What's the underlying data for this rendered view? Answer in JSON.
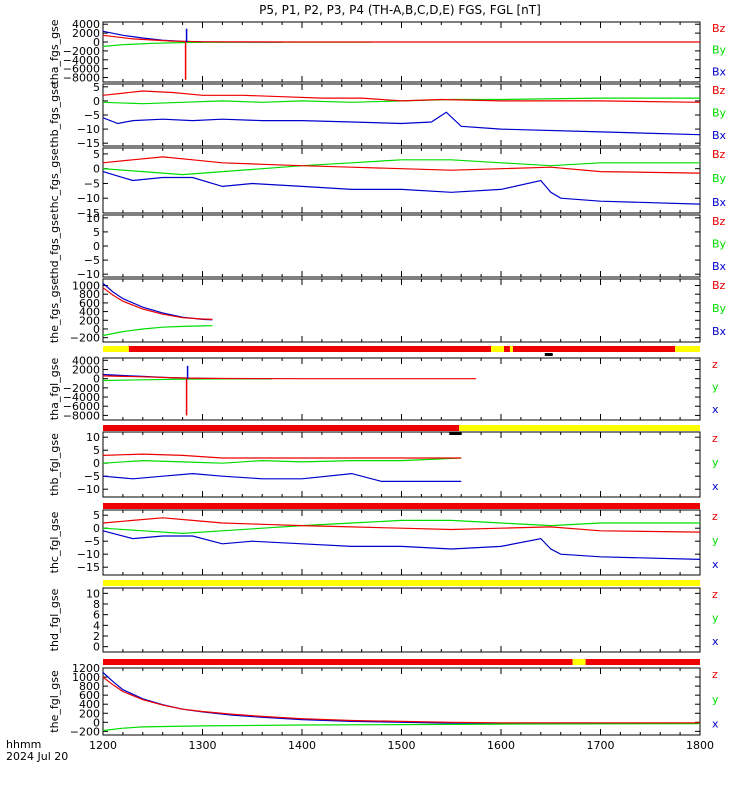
{
  "title": "P5, P1, P2, P3, P4 (TH-A,B,C,D,E) FGS, FGL [nT]",
  "footer": {
    "unit": "hhmm",
    "date": "2024 Jul 20"
  },
  "colors": {
    "x": "#0000cc",
    "y": "#00dd00",
    "z": "#ee0000",
    "flag_red": "#ee0000",
    "flag_yellow": "#ffff00",
    "flag_black": "#000000"
  },
  "chart_data": [
    {
      "type": "line",
      "ylabel": "tha_fgs_gse",
      "ylim": [
        -9000,
        4500
      ],
      "yticks": [
        4000,
        2000,
        0,
        -2000,
        -4000,
        -6000,
        -8000
      ],
      "legend": [
        "Bz",
        "By",
        "Bx"
      ],
      "xlim": [
        1200,
        1800
      ],
      "series": [
        {
          "name": "Bx",
          "color": "#0000cc",
          "x": [
            1200,
            1220,
            1240,
            1260,
            1280,
            1300,
            1330,
            1380
          ],
          "y": [
            2400,
            1500,
            900,
            400,
            150,
            20,
            -20,
            -20
          ]
        },
        {
          "name": "By",
          "color": "#00dd00",
          "x": [
            1200,
            1220,
            1250,
            1290,
            1330,
            1380,
            1470
          ],
          "y": [
            -1000,
            -600,
            -300,
            -100,
            -50,
            -30,
            -20
          ]
        },
        {
          "name": "Bz",
          "color": "#ee0000",
          "x": [
            1200,
            1230,
            1270,
            1300,
            1400,
            1500,
            1800
          ],
          "y": [
            1500,
            700,
            200,
            50,
            0,
            0,
            0
          ]
        }
      ],
      "spikes": [
        {
          "x": 1283,
          "y": -8500,
          "color": "#ee0000"
        },
        {
          "x": 1284,
          "y": 3000,
          "color": "#0000cc"
        }
      ]
    },
    {
      "type": "line",
      "ylabel": "thb_fgs_gse",
      "ylim": [
        -16,
        6
      ],
      "yticks": [
        5,
        0,
        -5,
        -10,
        -15
      ],
      "legend": [
        "Bz",
        "By",
        "Bx"
      ],
      "xlim": [
        1200,
        1800
      ],
      "series": [
        {
          "name": "Bx",
          "color": "#0000cc",
          "x": [
            1200,
            1215,
            1230,
            1260,
            1290,
            1320,
            1360,
            1400,
            1450,
            1500,
            1530,
            1545,
            1560,
            1600,
            1700,
            1800
          ],
          "y": [
            -6,
            -8,
            -7,
            -6.5,
            -7,
            -6.5,
            -7,
            -7,
            -7.5,
            -8,
            -7.5,
            -4,
            -9,
            -10,
            -11,
            -12
          ]
        },
        {
          "name": "By",
          "color": "#00dd00",
          "x": [
            1200,
            1240,
            1280,
            1320,
            1360,
            1400,
            1450,
            1500,
            1550,
            1600,
            1700,
            1800
          ],
          "y": [
            -0.5,
            -1,
            -0.5,
            0,
            -0.5,
            0,
            -0.5,
            0,
            0.5,
            0.5,
            1,
            1
          ]
        },
        {
          "name": "Bz",
          "color": "#ee0000",
          "x": [
            1200,
            1240,
            1270,
            1300,
            1340,
            1380,
            1420,
            1460,
            1500,
            1540,
            1600,
            1700,
            1800
          ],
          "y": [
            2,
            3.5,
            3,
            2,
            2,
            1.5,
            1,
            1,
            0,
            0.5,
            0,
            0,
            -0.5
          ]
        }
      ]
    },
    {
      "type": "line",
      "ylabel": "thc_fgs_gse",
      "ylim": [
        -15,
        7
      ],
      "yticks": [
        5,
        0,
        -5,
        -10,
        -15
      ],
      "legend": [
        "Bz",
        "By",
        "Bx"
      ],
      "xlim": [
        1200,
        1800
      ],
      "series": [
        {
          "name": "Bx",
          "color": "#0000cc",
          "x": [
            1200,
            1230,
            1260,
            1290,
            1320,
            1350,
            1400,
            1450,
            1500,
            1550,
            1600,
            1640,
            1650,
            1660,
            1700,
            1800
          ],
          "y": [
            -1,
            -4,
            -3,
            -3,
            -6,
            -5,
            -6,
            -7,
            -7,
            -8,
            -7,
            -4,
            -8,
            -10,
            -11,
            -12
          ]
        },
        {
          "name": "By",
          "color": "#00dd00",
          "x": [
            1200,
            1240,
            1280,
            1320,
            1360,
            1400,
            1450,
            1500,
            1550,
            1600,
            1650,
            1700,
            1800
          ],
          "y": [
            0,
            -1,
            -2,
            -1,
            0,
            1,
            2,
            3,
            3,
            2,
            1,
            2,
            2
          ]
        },
        {
          "name": "Bz",
          "color": "#ee0000",
          "x": [
            1200,
            1230,
            1260,
            1290,
            1320,
            1360,
            1400,
            1450,
            1500,
            1550,
            1600,
            1650,
            1700,
            1800
          ],
          "y": [
            2,
            3,
            4,
            3,
            2,
            1.5,
            1,
            0.5,
            0,
            -0.5,
            0,
            0.5,
            -1,
            -1.5
          ]
        }
      ]
    },
    {
      "type": "line",
      "ylabel": "thd_fgs_gse",
      "ylim": [
        -11,
        11
      ],
      "yticks": [
        10,
        5,
        0,
        -5,
        -10
      ],
      "legend": [
        "Bz",
        "By",
        "Bx"
      ],
      "xlim": [
        1200,
        1800
      ],
      "series": []
    },
    {
      "type": "line",
      "ylabel": "the_fgs_gse",
      "ylim": [
        -300,
        1150
      ],
      "yticks": [
        1000,
        800,
        600,
        400,
        200,
        0,
        -200
      ],
      "legend": [
        "Bz",
        "By",
        "Bx"
      ],
      "xlim": [
        1200,
        1800
      ],
      "series": [
        {
          "name": "Bx",
          "color": "#0000cc",
          "x": [
            1200,
            1210,
            1220,
            1240,
            1260,
            1280,
            1300,
            1310
          ],
          "y": [
            1050,
            850,
            700,
            500,
            370,
            270,
            220,
            210
          ]
        },
        {
          "name": "By",
          "color": "#00dd00",
          "x": [
            1200,
            1220,
            1240,
            1260,
            1280,
            1300,
            1310
          ],
          "y": [
            -150,
            -60,
            0,
            40,
            60,
            70,
            75
          ]
        },
        {
          "name": "Bz",
          "color": "#ee0000",
          "x": [
            1200,
            1210,
            1220,
            1240,
            1260,
            1280,
            1300,
            1310
          ],
          "y": [
            950,
            780,
            640,
            460,
            340,
            260,
            230,
            220
          ]
        }
      ],
      "flags": [
        {
          "x": [
            1200,
            1226
          ],
          "color": "#ffff00"
        },
        {
          "x": [
            1226,
            1590
          ],
          "color": "#ee0000"
        },
        {
          "x": [
            1590,
            1603
          ],
          "color": "#ffff00"
        },
        {
          "x": [
            1603,
            1609
          ],
          "color": "#ee0000"
        },
        {
          "x": [
            1609,
            1612
          ],
          "color": "#ffff00"
        },
        {
          "x": [
            1612,
            1775
          ],
          "color": "#ee0000"
        },
        {
          "x": [
            1775,
            1800
          ],
          "color": "#ffff00"
        }
      ],
      "flag_marks": [
        {
          "x": [
            1644,
            1652
          ],
          "color": "#000000"
        }
      ]
    },
    {
      "type": "line",
      "ylabel": "tha_fgl_gse",
      "ylim": [
        -9000,
        4500
      ],
      "yticks": [
        4000,
        2000,
        0,
        -2000,
        -4000,
        -6000,
        -8000
      ],
      "legend": [
        "z",
        "y",
        "x"
      ],
      "xlim": [
        1200,
        1800
      ],
      "series": [
        {
          "name": "x",
          "color": "#0000cc",
          "x": [
            1200,
            1220,
            1240,
            1260,
            1280,
            1300,
            1330,
            1370
          ],
          "y": [
            900,
            700,
            500,
            300,
            150,
            50,
            0,
            -20
          ]
        },
        {
          "name": "y",
          "color": "#00dd00",
          "x": [
            1200,
            1240,
            1280,
            1320,
            1370
          ],
          "y": [
            -400,
            -250,
            -100,
            -40,
            -20
          ]
        },
        {
          "name": "z",
          "color": "#ee0000",
          "x": [
            1200,
            1240,
            1280,
            1300,
            1400,
            1500,
            1575
          ],
          "y": [
            600,
            400,
            150,
            50,
            0,
            0,
            0
          ]
        }
      ],
      "spikes": [
        {
          "x": 1284,
          "y": -8000,
          "color": "#ee0000"
        },
        {
          "x": 1285,
          "y": 2800,
          "color": "#0000cc"
        }
      ],
      "flags": [
        {
          "x": [
            1200,
            1558
          ],
          "color": "#ee0000"
        },
        {
          "x": [
            1558,
            1800
          ],
          "color": "#ffff00"
        }
      ],
      "flag_marks": [
        {
          "x": [
            1548,
            1560
          ],
          "color": "#000000"
        }
      ]
    },
    {
      "type": "line",
      "ylabel": "thb_fgl_gse",
      "ylim": [
        -13,
        12
      ],
      "yticks": [
        10,
        5,
        0,
        -5,
        -10
      ],
      "legend": [
        "z",
        "y",
        "x"
      ],
      "xlim": [
        1200,
        1800
      ],
      "series": [
        {
          "name": "x",
          "color": "#0000cc",
          "x": [
            1200,
            1230,
            1260,
            1290,
            1320,
            1360,
            1400,
            1450,
            1480,
            1520,
            1560
          ],
          "y": [
            -5,
            -6,
            -5,
            -4,
            -5,
            -6,
            -6,
            -4,
            -7,
            -7,
            -7
          ]
        },
        {
          "name": "y",
          "color": "#00dd00",
          "x": [
            1200,
            1240,
            1280,
            1320,
            1360,
            1400,
            1450,
            1500,
            1560
          ],
          "y": [
            0,
            1,
            0.5,
            0,
            1,
            0.5,
            1,
            1,
            2
          ]
        },
        {
          "name": "z",
          "color": "#ee0000",
          "x": [
            1200,
            1240,
            1280,
            1320,
            1360,
            1400,
            1450,
            1500,
            1560
          ],
          "y": [
            3,
            3.5,
            3,
            2,
            2,
            2,
            2,
            2,
            2
          ]
        }
      ],
      "flags": [
        {
          "x": [
            1200,
            1800
          ],
          "color": "#ee0000"
        }
      ]
    },
    {
      "type": "line",
      "ylabel": "thc_fgl_gse",
      "ylim": [
        -18,
        7
      ],
      "yticks": [
        5,
        0,
        -5,
        -10,
        -15
      ],
      "legend": [
        "z",
        "y",
        "x"
      ],
      "xlim": [
        1200,
        1800
      ],
      "series": [
        {
          "name": "x",
          "color": "#0000cc",
          "x": [
            1200,
            1230,
            1260,
            1290,
            1320,
            1350,
            1400,
            1450,
            1500,
            1550,
            1600,
            1640,
            1650,
            1660,
            1700,
            1800
          ],
          "y": [
            -1,
            -4,
            -3,
            -3,
            -6,
            -5,
            -6,
            -7,
            -7,
            -8,
            -7,
            -4,
            -8,
            -10,
            -11,
            -12
          ]
        },
        {
          "name": "y",
          "color": "#00dd00",
          "x": [
            1200,
            1240,
            1280,
            1320,
            1360,
            1400,
            1450,
            1500,
            1550,
            1600,
            1650,
            1700,
            1800
          ],
          "y": [
            0,
            -1,
            -2,
            -1,
            0,
            1,
            2,
            3,
            3,
            2,
            1,
            2,
            2
          ]
        },
        {
          "name": "z",
          "color": "#ee0000",
          "x": [
            1200,
            1230,
            1260,
            1290,
            1320,
            1360,
            1400,
            1450,
            1500,
            1550,
            1600,
            1650,
            1700,
            1800
          ],
          "y": [
            2,
            3,
            4,
            3,
            2,
            1.5,
            1,
            0.5,
            0,
            -0.5,
            0,
            0.5,
            -1,
            -1.5
          ]
        }
      ],
      "flags": [
        {
          "x": [
            1200,
            1800
          ],
          "color": "#ffff00"
        }
      ]
    },
    {
      "type": "line",
      "ylabel": "thd_fgl_gse",
      "ylim": [
        -1,
        11
      ],
      "yticks": [
        10,
        8,
        6,
        4,
        2,
        0
      ],
      "legend": [
        "z",
        "y",
        "x"
      ],
      "xlim": [
        1200,
        1800
      ],
      "series": [],
      "flags": [
        {
          "x": [
            1200,
            1672
          ],
          "color": "#ee0000"
        },
        {
          "x": [
            1672,
            1685
          ],
          "color": "#ffff00"
        },
        {
          "x": [
            1685,
            1800
          ],
          "color": "#ee0000"
        }
      ]
    },
    {
      "type": "line",
      "ylabel": "the_fgl_gse",
      "ylim": [
        -280,
        1200
      ],
      "yticks": [
        1200,
        1000,
        800,
        600,
        400,
        200,
        0,
        -200
      ],
      "legend": [
        "z",
        "y",
        "x"
      ],
      "xlim": [
        1200,
        1800
      ],
      "xticks": [
        1200,
        1300,
        1400,
        1500,
        1600,
        1700,
        1800
      ],
      "series": [
        {
          "name": "x",
          "color": "#0000cc",
          "x": [
            1200,
            1210,
            1220,
            1240,
            1260,
            1280,
            1300,
            1330,
            1360,
            1400,
            1450,
            1500,
            1550,
            1600,
            1700,
            1800
          ],
          "y": [
            1100,
            900,
            720,
            520,
            390,
            290,
            230,
            160,
            110,
            60,
            20,
            0,
            -20,
            -20,
            -20,
            -20
          ]
        },
        {
          "name": "y",
          "color": "#00dd00",
          "x": [
            1200,
            1220,
            1240,
            1300,
            1400,
            1500,
            1600,
            1800
          ],
          "y": [
            -180,
            -130,
            -100,
            -80,
            -60,
            -50,
            -40,
            -30
          ]
        },
        {
          "name": "z",
          "color": "#ee0000",
          "x": [
            1200,
            1210,
            1220,
            1240,
            1260,
            1280,
            1300,
            1330,
            1360,
            1400,
            1450,
            1500,
            1550,
            1600,
            1700,
            1800
          ],
          "y": [
            1000,
            830,
            680,
            500,
            380,
            290,
            240,
            180,
            130,
            80,
            40,
            20,
            0,
            -10,
            -10,
            -10
          ]
        }
      ]
    }
  ]
}
